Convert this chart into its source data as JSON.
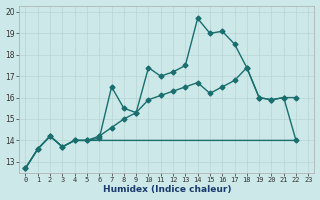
{
  "xlabel": "Humidex (Indice chaleur)",
  "background_color": "#cce8e8",
  "grid_color": "#b8d4d4",
  "line_color": "#1a6e6e",
  "xlim": [
    -0.5,
    23.5
  ],
  "ylim": [
    12.5,
    20.3
  ],
  "xticks": [
    0,
    1,
    2,
    3,
    4,
    5,
    6,
    7,
    8,
    9,
    10,
    11,
    12,
    13,
    14,
    15,
    16,
    17,
    18,
    19,
    20,
    21,
    22,
    23
  ],
  "yticks": [
    13,
    14,
    15,
    16,
    17,
    18,
    19,
    20
  ],
  "series1_x": [
    0,
    1,
    2,
    3,
    4,
    5,
    6,
    7,
    8,
    9,
    10,
    11,
    12,
    13,
    14,
    15,
    16,
    17,
    18,
    19,
    20,
    21,
    22
  ],
  "series1_y": [
    12.7,
    13.6,
    14.2,
    13.7,
    14.0,
    14.0,
    14.1,
    16.5,
    15.5,
    15.3,
    17.4,
    17.0,
    17.2,
    17.5,
    19.7,
    19.0,
    19.1,
    18.5,
    17.4,
    16.0,
    15.9,
    16.0,
    14.0
  ],
  "series2_x": [
    0,
    1,
    2,
    3,
    4,
    5,
    6,
    7,
    8,
    9,
    10,
    11,
    12,
    13,
    14,
    15,
    16,
    17,
    18,
    19,
    20,
    21,
    22
  ],
  "series2_y": [
    12.7,
    13.6,
    14.2,
    13.7,
    14.0,
    14.0,
    14.2,
    14.6,
    15.0,
    15.3,
    15.9,
    16.1,
    16.3,
    16.5,
    16.7,
    16.2,
    16.5,
    16.8,
    17.4,
    16.0,
    15.9,
    16.0,
    16.0
  ],
  "series3_x": [
    0,
    1,
    2,
    3,
    4,
    5,
    6,
    7,
    8,
    9,
    10,
    11,
    12,
    13,
    14,
    15,
    16,
    17,
    18,
    19,
    20,
    21,
    22
  ],
  "series3_y": [
    12.7,
    13.6,
    14.2,
    13.7,
    14.0,
    14.0,
    14.0,
    14.0,
    14.0,
    14.0,
    14.0,
    14.0,
    14.0,
    14.0,
    14.0,
    14.0,
    14.0,
    14.0,
    14.0,
    14.0,
    14.0,
    14.0,
    14.0
  ]
}
